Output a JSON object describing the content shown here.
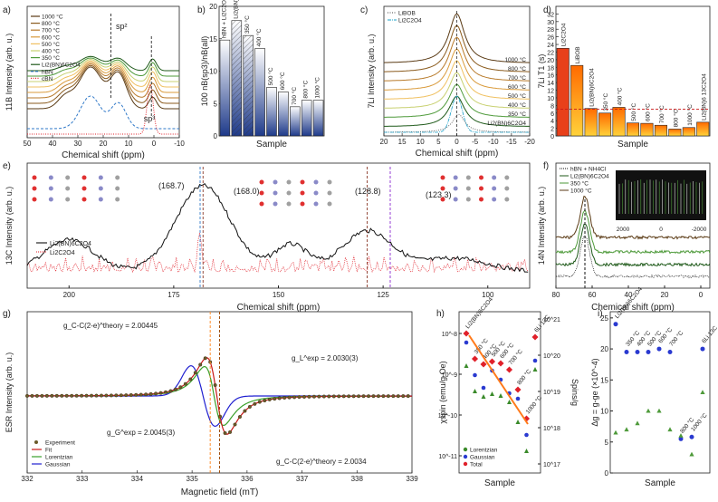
{
  "chart_data": [
    {
      "panel": "a",
      "type": "line",
      "xlabel": "Chemical shift (ppm)",
      "ylabel": "11B Intensity (arb. u.)",
      "xlim": [
        50,
        -10
      ],
      "xticks": [
        "50",
        "40",
        "30",
        "20",
        "10",
        "0",
        "-10"
      ],
      "annotations": [
        "sp²",
        "sp³"
      ],
      "series": [
        {
          "name": "1000 °C",
          "color": "#5a3a14"
        },
        {
          "name": "800 °C",
          "color": "#8a5a1c"
        },
        {
          "name": "700 °C",
          "color": "#b87a2a"
        },
        {
          "name": "600 °C",
          "color": "#d99a3a"
        },
        {
          "name": "500 °C",
          "color": "#f0c060"
        },
        {
          "name": "400 °C",
          "color": "#c8d070"
        },
        {
          "name": "350 °C",
          "color": "#4e9a3a"
        },
        {
          "name": "Li2(BN)6C2O4",
          "color": "#1f5a1a"
        },
        {
          "name": "hBN",
          "color": "#2f78c8"
        },
        {
          "name": "cBN",
          "color": "#e0202a"
        }
      ]
    },
    {
      "panel": "b",
      "type": "bar",
      "xlabel": "Sample",
      "ylabel": "100 nB(sp3)/nB(all)",
      "ylim": [
        0,
        20
      ],
      "yticks": [
        "0",
        "5",
        "10",
        "15",
        "20"
      ],
      "categories": [
        "hBN + Li2C2O4 mixture",
        "Li2(BN)6C2O4",
        "350 °C",
        "400 °C",
        "500 °C",
        "600 °C",
        "700 °C",
        "800 °C",
        "1000 °C"
      ],
      "values": [
        14.8,
        17.8,
        15.5,
        13.5,
        7.5,
        6.8,
        4.5,
        5.5,
        5.5
      ]
    },
    {
      "panel": "c",
      "type": "line",
      "xlabel": "Chemical shift (ppm)",
      "ylabel": "7Li Intensity (arb. u.)",
      "xlim": [
        20,
        -20
      ],
      "xticks": [
        "20",
        "15",
        "10",
        "5",
        "0",
        "-5",
        "-10",
        "-15",
        "-20"
      ],
      "legend": [
        "LiBOB",
        "Li2C2O4"
      ],
      "series_labels": [
        "1000 °C",
        "800 °C",
        "700 °C",
        "600 °C",
        "500 °C",
        "400 °C",
        "350 °C",
        "Li2(BN)6C2O4"
      ]
    },
    {
      "panel": "d",
      "type": "bar",
      "xlabel": "Sample",
      "ylabel": "7Li T1 (s)",
      "ylim": [
        0,
        34
      ],
      "yticks": [
        "0",
        "2",
        "4",
        "6",
        "8",
        "10",
        "12",
        "14",
        "16",
        "18",
        "20",
        "22",
        "24",
        "26",
        "28",
        "30",
        "32"
      ],
      "categories": [
        "Li2C2O4",
        "LiBOB",
        "Li2(BN)6C2O4",
        "350 °C",
        "400 °C",
        "500 °C",
        "600 °C",
        "700 °C",
        "800 °C",
        "1000 °C",
        "Li2(BN)6 13C2O4"
      ],
      "values": [
        23.0,
        18.5,
        7.2,
        6.0,
        7.5,
        3.4,
        3.3,
        2.8,
        1.8,
        2.2,
        3.6
      ],
      "reference_line": 7.0
    },
    {
      "panel": "e",
      "type": "line",
      "xlabel": "Chemical shift (ppm)",
      "ylabel": "13C Intensity (arb. u.)",
      "xlim": [
        210,
        90
      ],
      "xticks": [
        "200",
        "175",
        "150",
        "125",
        "100"
      ],
      "annotations": [
        "(168.7)",
        "(168.0)",
        "(128.8)",
        "(123.3)"
      ],
      "legend": [
        "Li2(BN)6C2O4",
        "Li2C2O4"
      ]
    },
    {
      "panel": "f",
      "type": "line",
      "xlabel": "Chemical shift (ppm)",
      "ylabel": "14N Intensity (arb. u.)",
      "xlim": [
        80,
        -5
      ],
      "xticks": [
        "80",
        "60",
        "40",
        "20",
        "0"
      ],
      "legend": [
        "hBN + NH4Cl",
        "Li2(BN)6C2O4",
        "350 °C",
        "1000 °C"
      ],
      "inset_xticks": [
        "2000",
        "0",
        "-2000"
      ]
    },
    {
      "panel": "g",
      "type": "line",
      "xlabel": "Magnetic field (mT)",
      "ylabel": "ESR Intensity (arb. u.)",
      "xlim": [
        332,
        339
      ],
      "xticks": [
        "332",
        "333",
        "334",
        "335",
        "336",
        "337",
        "338",
        "339"
      ],
      "legend": [
        "Experiment",
        "Fit",
        "Lorentzian",
        "Gaussian"
      ],
      "annotations": [
        {
          "label": "g_C-C(2-e)^theory = 2.00445",
          "color": "#ff8c2a"
        },
        {
          "label": "g_L^exp = 2.0030(3)",
          "color": "#1f8a1a"
        },
        {
          "label": "g_G^exp = 2.0045(3)",
          "color": "#2020d0"
        },
        {
          "label": "g_C-C(2-e)^theory = 2.0034",
          "color": "#a05010"
        }
      ]
    },
    {
      "panel": "h",
      "type": "scatter",
      "xlabel": "Sample",
      "ylabel": "χspin (emu/g Oe)",
      "y2label": "Spins/g",
      "yticks": [
        "10^-8",
        "10^-9",
        "10^-10",
        "10^-11"
      ],
      "y2ticks": [
        "10^21",
        "10^20",
        "10^19",
        "10^18",
        "10^17"
      ],
      "categories": [
        "Li2(BN)6C2O4",
        "350 °C",
        "400 °C",
        "500 °C",
        "600 °C",
        "700 °C",
        "800 °C",
        "1000 °C",
        "6Li 13C"
      ],
      "legend": [
        "Lorentzian",
        "Gaussian",
        "Total"
      ]
    },
    {
      "panel": "i",
      "type": "scatter",
      "xlabel": "Sample",
      "ylabel": "Δg = g-ge (×10^-4)",
      "ylim": [
        0,
        26
      ],
      "yticks": [
        "0",
        "5",
        "10",
        "15",
        "20",
        "25"
      ],
      "categories": [
        "Li2(BN)6C2O4",
        "350 °C",
        "400 °C",
        "500 °C",
        "600 °C",
        "700 °C",
        "800 °C",
        "1000 °C",
        "6Li 13C"
      ],
      "series": [
        {
          "name": "Gaussian",
          "color": "#2a3ad0",
          "values": [
            24,
            19.5,
            19.5,
            19.5,
            20,
            19.5,
            5.5,
            5.8,
            20
          ]
        },
        {
          "name": "Lorentzian",
          "color": "#4e9a3a",
          "values": [
            6.5,
            7,
            8,
            10,
            10,
            7,
            6,
            3,
            13
          ]
        }
      ]
    }
  ],
  "panels": {
    "a": {
      "letter": "a)",
      "title": "11B Intensity (arb. u.)"
    },
    "b": {
      "letter": "b)"
    },
    "c": {
      "letter": "c)"
    },
    "d": {
      "letter": "d)"
    },
    "e": {
      "letter": "e)"
    },
    "f": {
      "letter": "f)"
    },
    "g": {
      "letter": "g)"
    },
    "h": {
      "letter": "h)"
    },
    "i": {
      "letter": "i)"
    }
  }
}
